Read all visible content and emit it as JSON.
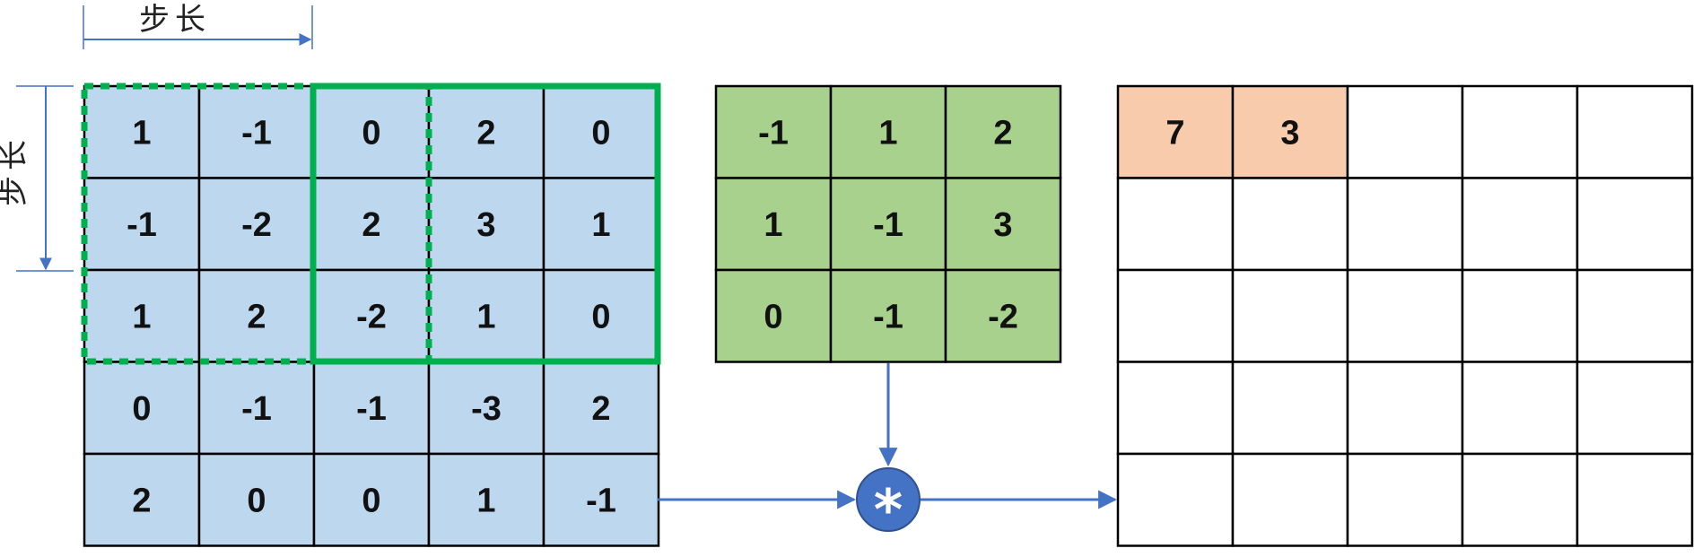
{
  "stride_label": "步长",
  "input_matrix": [
    [
      "1",
      "-1",
      "0",
      "2",
      "0"
    ],
    [
      "-1",
      "-2",
      "2",
      "3",
      "1"
    ],
    [
      "1",
      "2",
      "-2",
      "1",
      "0"
    ],
    [
      "0",
      "-1",
      "-1",
      "-3",
      "2"
    ],
    [
      "2",
      "0",
      "0",
      "1",
      "-1"
    ]
  ],
  "kernel_matrix": [
    [
      "-1",
      "1",
      "2"
    ],
    [
      "1",
      "-1",
      "3"
    ],
    [
      "0",
      "-1",
      "-2"
    ]
  ],
  "output_matrix": [
    [
      "7",
      "3",
      "",
      "",
      ""
    ],
    [
      "",
      "",
      "",
      "",
      ""
    ],
    [
      "",
      "",
      "",
      "",
      ""
    ],
    [
      "",
      "",
      "",
      "",
      ""
    ],
    [
      "",
      "",
      "",
      "",
      ""
    ]
  ],
  "operator_symbol": "*",
  "colors": {
    "input_fill": "#bdd7ee",
    "kernel_fill": "#a9d18e",
    "output_fill": "#ffffff",
    "output_highlight_fill": "#f8cbad",
    "window_border": "#00b050",
    "arrow": "#4472c4",
    "operator_fill": "#4472c4",
    "grid_line": "#000000"
  },
  "output_highlighted_cells": [
    [
      0,
      0
    ],
    [
      0,
      1
    ]
  ]
}
